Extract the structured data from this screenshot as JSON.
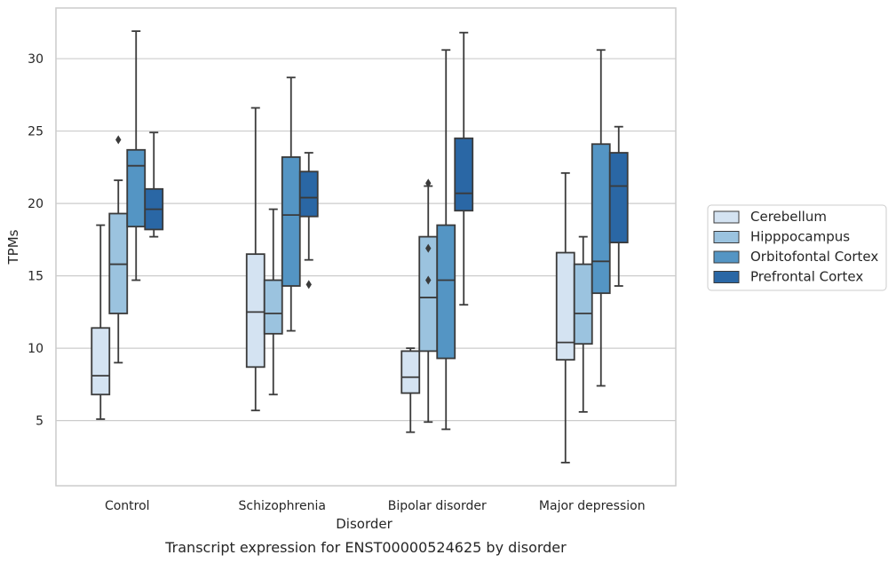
{
  "chart_data": {
    "type": "box",
    "xlabel": "Disorder",
    "ylabel": "TPMs",
    "caption": "Transcript expression for ENST00000524625 by disorder",
    "ylim": [
      0.5,
      33.5
    ],
    "yticks": [
      5,
      10,
      15,
      20,
      25,
      30
    ],
    "grid": "horizontal",
    "legend_position": "right",
    "categories": [
      "Control",
      "Schizophrenia",
      "Bipolar disorder",
      "Major depression"
    ],
    "series": [
      {
        "name": "Cerebellum",
        "color": "#d4e3f2",
        "boxes": [
          {
            "whislo": 5.1,
            "q1": 6.8,
            "med": 8.1,
            "q3": 11.4,
            "whishi": 18.5,
            "fliers": []
          },
          {
            "whislo": 5.7,
            "q1": 8.7,
            "med": 12.5,
            "q3": 16.5,
            "whishi": 26.6,
            "fliers": []
          },
          {
            "whislo": 4.2,
            "q1": 6.9,
            "med": 8.0,
            "q3": 9.8,
            "whishi": 10.0,
            "fliers": []
          },
          {
            "whislo": 2.1,
            "q1": 9.2,
            "med": 10.4,
            "q3": 16.6,
            "whishi": 22.1,
            "fliers": []
          }
        ]
      },
      {
        "name": "Hipppocampus",
        "color": "#9bc3df",
        "boxes": [
          {
            "whislo": 9.0,
            "q1": 12.4,
            "med": 15.8,
            "q3": 19.3,
            "whishi": 21.6,
            "fliers": [
              24.4
            ]
          },
          {
            "whislo": 6.8,
            "q1": 11.0,
            "med": 12.4,
            "q3": 14.7,
            "whishi": 19.6,
            "fliers": []
          },
          {
            "whislo": 4.9,
            "q1": 9.8,
            "med": 13.5,
            "q3": 17.7,
            "whishi": 21.2,
            "fliers": [
              21.4,
              16.9,
              14.7
            ]
          },
          {
            "whislo": 5.6,
            "q1": 10.3,
            "med": 12.4,
            "q3": 15.8,
            "whishi": 17.7,
            "fliers": []
          }
        ]
      },
      {
        "name": "Orbitofontal Cortex",
        "color": "#5495c4",
        "boxes": [
          {
            "whislo": 14.7,
            "q1": 18.4,
            "med": 22.6,
            "q3": 23.7,
            "whishi": 31.9,
            "fliers": []
          },
          {
            "whislo": 11.2,
            "q1": 14.3,
            "med": 19.2,
            "q3": 23.2,
            "whishi": 28.7,
            "fliers": []
          },
          {
            "whislo": 4.4,
            "q1": 9.3,
            "med": 14.7,
            "q3": 18.5,
            "whishi": 30.6,
            "fliers": []
          },
          {
            "whislo": 7.4,
            "q1": 13.8,
            "med": 16.0,
            "q3": 24.1,
            "whishi": 30.6,
            "fliers": []
          }
        ]
      },
      {
        "name": "Prefrontal Cortex",
        "color": "#2a67a5",
        "boxes": [
          {
            "whislo": 17.7,
            "q1": 18.2,
            "med": 19.6,
            "q3": 21.0,
            "whishi": 24.9,
            "fliers": []
          },
          {
            "whislo": 16.1,
            "q1": 19.1,
            "med": 20.4,
            "q3": 22.2,
            "whishi": 23.5,
            "fliers": [
              14.4
            ]
          },
          {
            "whislo": 13.0,
            "q1": 19.5,
            "med": 20.7,
            "q3": 24.5,
            "whishi": 31.8,
            "fliers": []
          },
          {
            "whislo": 14.3,
            "q1": 17.3,
            "med": 21.2,
            "q3": 23.5,
            "whishi": 25.3,
            "fliers": []
          }
        ]
      }
    ]
  }
}
